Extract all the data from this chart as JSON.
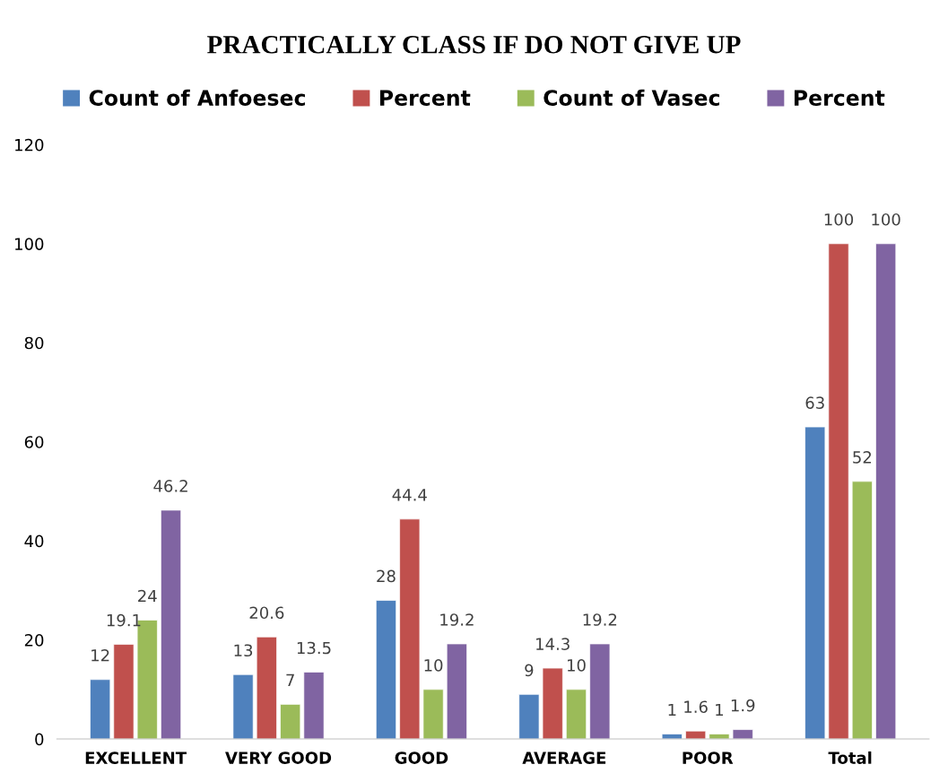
{
  "chart_data": {
    "type": "bar",
    "title": "PRACTICALLY CLASS IF DO NOT GIVE UP",
    "categories": [
      "EXCELLENT",
      "VERY GOOD",
      "GOOD",
      "AVERAGE",
      "POOR",
      "Total"
    ],
    "series": [
      {
        "name": "Count of Anfoesec",
        "color": "#4f81bd",
        "values": [
          12,
          13,
          28,
          9,
          1,
          63
        ]
      },
      {
        "name": "Percent",
        "color": "#c0504d",
        "values": [
          19.1,
          20.6,
          44.4,
          14.3,
          1.6,
          100
        ]
      },
      {
        "name": "Count of Vasec",
        "color": "#9bbb59",
        "values": [
          24,
          7,
          10,
          10,
          1,
          52
        ]
      },
      {
        "name": "Percent",
        "color": "#8064a2",
        "values": [
          46.2,
          13.5,
          19.2,
          19.2,
          1.9,
          100
        ]
      }
    ],
    "ylim": [
      0,
      120
    ],
    "yticks": [
      0,
      20,
      40,
      60,
      80,
      100,
      120
    ],
    "data_labels": true,
    "legend": "top",
    "grid": false
  }
}
